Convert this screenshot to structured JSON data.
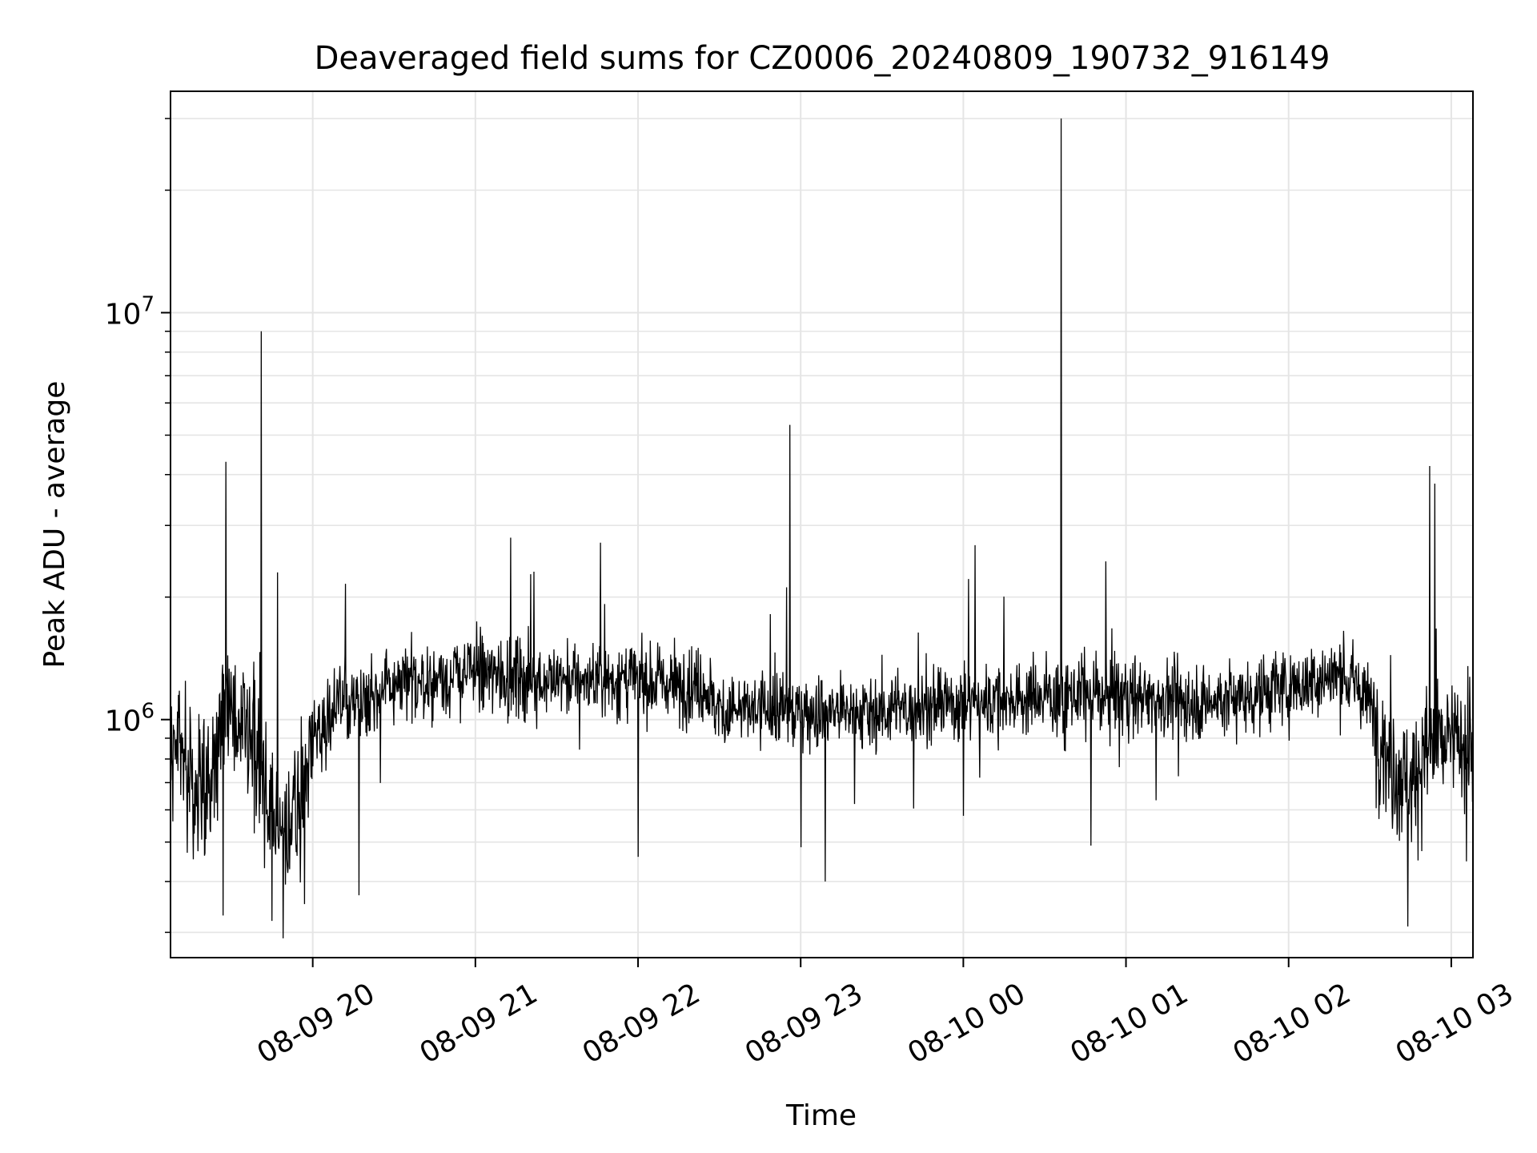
{
  "chart_data": {
    "type": "line",
    "title": "Deaveraged field sums for CZ0006_20240809_190732_916149",
    "xlabel": "Time",
    "ylabel": "Peak ADU - average",
    "y_scale": "log",
    "ylim": [
      260000,
      35000000
    ],
    "xlim": [
      "2024-08-09 19:07:32",
      "2024-08-10 03:08:00"
    ],
    "grid": true,
    "legend": "none",
    "colors": {
      "line": "#000000",
      "grid": "#e5e5e5",
      "axes": "#000000"
    },
    "x_ticks": [
      {
        "label": "08-09 20",
        "time": "2024-08-09 20:00"
      },
      {
        "label": "08-09 21",
        "time": "2024-08-09 21:00"
      },
      {
        "label": "08-09 22",
        "time": "2024-08-09 22:00"
      },
      {
        "label": "08-09 23",
        "time": "2024-08-09 23:00"
      },
      {
        "label": "08-10 00",
        "time": "2024-08-10 00:00"
      },
      {
        "label": "08-10 01",
        "time": "2024-08-10 01:00"
      },
      {
        "label": "08-10 02",
        "time": "2024-08-10 02:00"
      },
      {
        "label": "08-10 03",
        "time": "2024-08-10 03:00"
      }
    ],
    "y_ticks": [
      {
        "base": "10",
        "exp": "6",
        "value": 1000000
      },
      {
        "base": "10",
        "exp": "7",
        "value": 10000000
      }
    ],
    "series": [
      {
        "color": "#000000",
        "baseline": [
          [
            "2024-08-09 19:07",
            900000
          ],
          [
            "2024-08-09 19:15",
            750000
          ],
          [
            "2024-08-09 19:22",
            650000
          ],
          [
            "2024-08-09 19:28",
            1150000
          ],
          [
            "2024-08-09 19:34",
            900000
          ],
          [
            "2024-08-09 19:40",
            800000
          ],
          [
            "2024-08-09 19:45",
            600000
          ],
          [
            "2024-08-09 19:50",
            500000
          ],
          [
            "2024-08-09 19:55",
            650000
          ],
          [
            "2024-08-09 20:00",
            900000
          ],
          [
            "2024-08-09 20:10",
            1100000
          ],
          [
            "2024-08-09 20:30",
            1200000
          ],
          [
            "2024-08-09 21:00",
            1300000
          ],
          [
            "2024-08-09 21:30",
            1250000
          ],
          [
            "2024-08-09 22:00",
            1250000
          ],
          [
            "2024-08-09 22:25",
            1200000
          ],
          [
            "2024-08-09 22:30",
            1050000
          ],
          [
            "2024-08-09 23:00",
            1050000
          ],
          [
            "2024-08-09 23:30",
            1050000
          ],
          [
            "2024-08-10 00:00",
            1100000
          ],
          [
            "2024-08-10 00:30",
            1150000
          ],
          [
            "2024-08-10 01:00",
            1150000
          ],
          [
            "2024-08-10 01:30",
            1100000
          ],
          [
            "2024-08-10 02:00",
            1200000
          ],
          [
            "2024-08-10 02:20",
            1300000
          ],
          [
            "2024-08-10 02:30",
            1100000
          ],
          [
            "2024-08-10 02:37",
            800000
          ],
          [
            "2024-08-10 02:45",
            700000
          ],
          [
            "2024-08-10 02:52",
            850000
          ],
          [
            "2024-08-10 03:08",
            900000
          ]
        ],
        "spikes": [
          [
            "2024-08-09 19:28",
            4300000
          ],
          [
            "2024-08-09 19:41",
            9000000
          ],
          [
            "2024-08-09 19:47",
            2300000
          ],
          [
            "2024-08-09 21:13",
            2800000
          ],
          [
            "2024-08-09 22:56",
            5300000
          ],
          [
            "2024-08-10 00:36",
            30000000
          ],
          [
            "2024-08-10 02:52",
            4200000
          ],
          [
            "2024-08-10 02:54",
            3800000
          ]
        ],
        "dips": [
          [
            "2024-08-09 19:27",
            330000
          ],
          [
            "2024-08-09 19:45",
            320000
          ],
          [
            "2024-08-09 19:49",
            290000
          ],
          [
            "2024-08-09 20:17",
            370000
          ],
          [
            "2024-08-09 22:00",
            460000
          ],
          [
            "2024-08-09 23:09",
            400000
          ],
          [
            "2024-08-10 00:47",
            490000
          ],
          [
            "2024-08-10 02:44",
            310000
          ]
        ]
      }
    ]
  }
}
